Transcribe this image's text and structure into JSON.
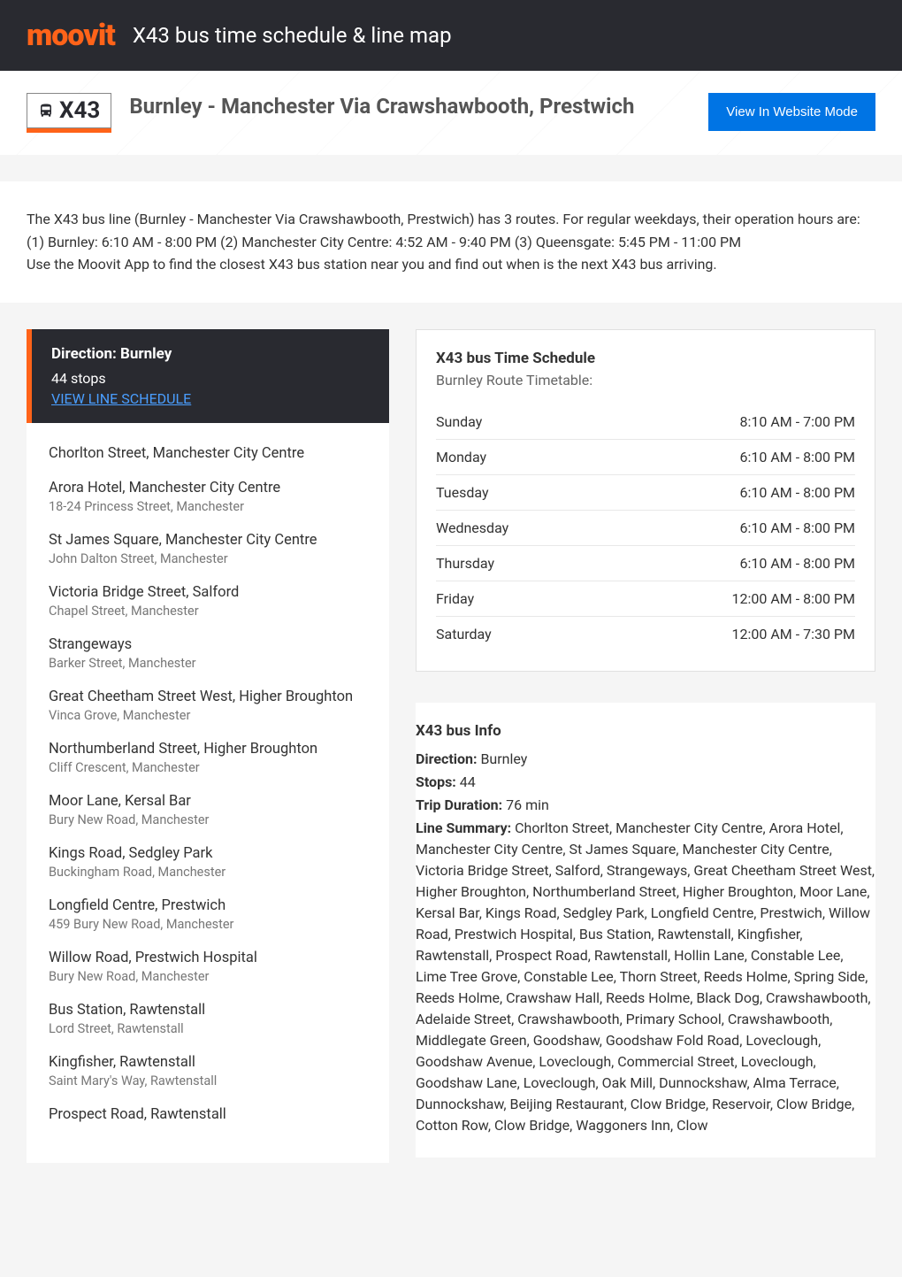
{
  "header": {
    "logo_text": "moovit",
    "title": "X43 bus time schedule & line map"
  },
  "banner": {
    "route_code": "X43",
    "route_name": "Burnley - Manchester Via Crawshawbooth, Prestwich",
    "website_button": "View In Website Mode"
  },
  "description": {
    "line1": "The X43 bus line (Burnley - Manchester Via Crawshawbooth, Prestwich) has 3 routes. For regular weekdays, their operation hours are:",
    "line2": "(1) Burnley: 6:10 AM - 8:00 PM (2) Manchester City Centre: 4:52 AM - 9:40 PM (3) Queensgate: 5:45 PM - 11:00 PM",
    "line3": "Use the Moovit App to find the closest X43 bus station near you and find out when is the next X43 bus arriving."
  },
  "direction": {
    "title": "Direction: Burnley",
    "stops_count": "44 stops",
    "schedule_link": "VIEW LINE SCHEDULE"
  },
  "stops": [
    {
      "name": "Chorlton Street, Manchester City Centre",
      "address": ""
    },
    {
      "name": "Arora Hotel, Manchester City Centre",
      "address": "18-24 Princess Street, Manchester"
    },
    {
      "name": "St James Square, Manchester City Centre",
      "address": "John Dalton Street, Manchester"
    },
    {
      "name": "Victoria Bridge Street, Salford",
      "address": "Chapel Street, Manchester"
    },
    {
      "name": "Strangeways",
      "address": "Barker Street, Manchester"
    },
    {
      "name": "Great Cheetham Street West, Higher Broughton",
      "address": "Vinca Grove, Manchester"
    },
    {
      "name": "Northumberland Street, Higher Broughton",
      "address": "Cliff Crescent, Manchester"
    },
    {
      "name": "Moor Lane, Kersal Bar",
      "address": "Bury New Road, Manchester"
    },
    {
      "name": "Kings Road, Sedgley Park",
      "address": "Buckingham Road, Manchester"
    },
    {
      "name": "Longfield Centre, Prestwich",
      "address": "459 Bury New Road, Manchester"
    },
    {
      "name": "Willow Road, Prestwich Hospital",
      "address": "Bury New Road, Manchester"
    },
    {
      "name": "Bus Station, Rawtenstall",
      "address": "Lord Street, Rawtenstall"
    },
    {
      "name": "Kingfisher, Rawtenstall",
      "address": "Saint Mary's Way, Rawtenstall"
    },
    {
      "name": "Prospect Road, Rawtenstall",
      "address": ""
    }
  ],
  "schedule_card": {
    "title": "X43 bus Time Schedule",
    "subtitle": "Burnley Route Timetable:",
    "rows": [
      {
        "day": "Sunday",
        "time": "8:10 AM - 7:00 PM"
      },
      {
        "day": "Monday",
        "time": "6:10 AM - 8:00 PM"
      },
      {
        "day": "Tuesday",
        "time": "6:10 AM - 8:00 PM"
      },
      {
        "day": "Wednesday",
        "time": "6:10 AM - 8:00 PM"
      },
      {
        "day": "Thursday",
        "time": "6:10 AM - 8:00 PM"
      },
      {
        "day": "Friday",
        "time": "12:00 AM - 8:00 PM"
      },
      {
        "day": "Saturday",
        "time": "12:00 AM - 7:30 PM"
      }
    ]
  },
  "info_card": {
    "title": "X43 bus Info",
    "direction_label": "Direction:",
    "direction_value": " Burnley",
    "stops_label": "Stops:",
    "stops_value": " 44",
    "duration_label": "Trip Duration:",
    "duration_value": " 76 min",
    "summary_label": "Line Summary:",
    "summary_value": " Chorlton Street, Manchester City Centre, Arora Hotel, Manchester City Centre, St James Square, Manchester City Centre, Victoria Bridge Street, Salford, Strangeways, Great Cheetham Street West, Higher Broughton, Northumberland Street, Higher Broughton, Moor Lane, Kersal Bar, Kings Road, Sedgley Park, Longfield Centre, Prestwich, Willow Road, Prestwich Hospital, Bus Station, Rawtenstall, Kingfisher, Rawtenstall, Prospect Road, Rawtenstall, Hollin Lane, Constable Lee, Lime Tree Grove, Constable Lee, Thorn Street, Reeds Holme, Spring Side, Reeds Holme, Crawshaw Hall, Reeds Holme, Black Dog, Crawshawbooth, Adelaide Street, Crawshawbooth, Primary School, Crawshawbooth, Middlegate Green, Goodshaw, Goodshaw Fold Road, Loveclough, Goodshaw Avenue, Loveclough, Commercial Street, Loveclough, Goodshaw Lane, Loveclough, Oak Mill, Dunnockshaw, Alma Terrace, Dunnockshaw, Beijing Restaurant, Clow Bridge, Reservoir, Clow Bridge, Cotton Row, Clow Bridge, Waggoners Inn, Clow"
  },
  "colors": {
    "accent": "#ff6319",
    "header_bg": "#292a30",
    "link": "#4a9eff",
    "button": "#0074e4"
  }
}
